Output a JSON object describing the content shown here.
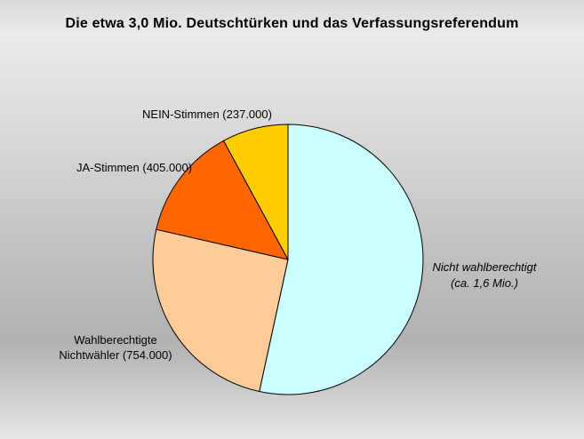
{
  "title": "Die etwa 3,0 Mio. Deutschtürken und das Verfassungsreferendum",
  "labels": {
    "nein": "NEIN-Stimmen (237.000)",
    "ja": "JA-Stimmen (405.000)",
    "nichtwaehler": "Wahlberechtigte\nNichtwähler (754.000)",
    "nicht_wahlberechtigt": "Nicht wahlberechtigt\n(ca. 1,6 Mio.)"
  },
  "chart_data": {
    "type": "pie",
    "title": "Die etwa 3,0 Mio. Deutschtürken und das Verfassungsreferendum",
    "start_angle_deg": 0,
    "direction": "clockwise",
    "stroke_color": "#000000",
    "background_gray_top": "#ebebeb",
    "background_gray_dark": "#b1b1b1",
    "slices": [
      {
        "label": "Nicht wahlberechtigt (ca. 1,6 Mio.)",
        "value": 1600000,
        "color": "#CCFFFF",
        "label_style": "italic"
      },
      {
        "label": "Wahlberechtigte Nichtwähler (754.000)",
        "value": 754000,
        "color": "#FFCC99",
        "label_style": "normal"
      },
      {
        "label": "JA-Stimmen (405.000)",
        "value": 405000,
        "color": "#FF6600",
        "label_style": "normal"
      },
      {
        "label": "NEIN-Stimmen (237.000)",
        "value": 237000,
        "color": "#FFCC00",
        "label_style": "normal"
      }
    ]
  }
}
